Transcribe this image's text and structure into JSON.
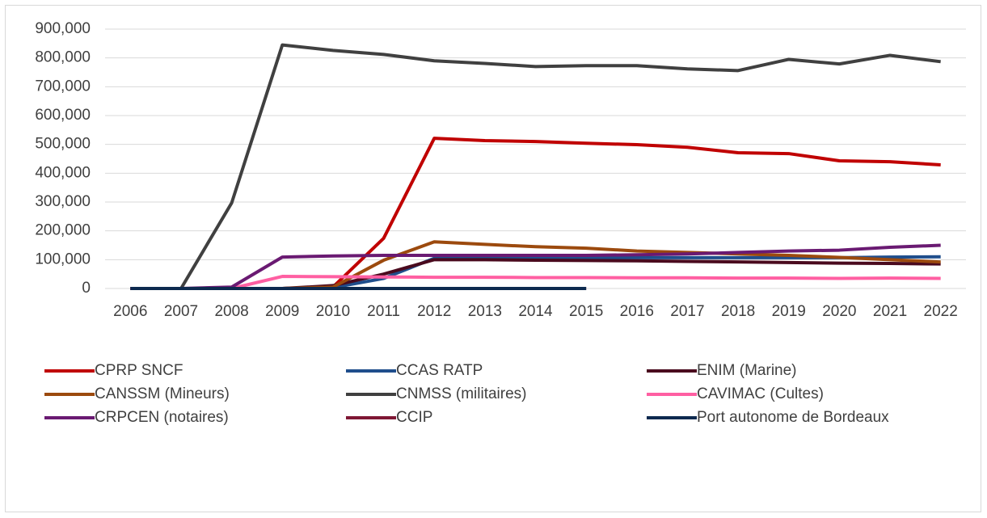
{
  "chart_data": {
    "type": "line",
    "categories": [
      "2006",
      "2007",
      "2008",
      "2009",
      "2010",
      "2011",
      "2012",
      "2013",
      "2014",
      "2015",
      "2016",
      "2017",
      "2018",
      "2019",
      "2020",
      "2021",
      "2022"
    ],
    "ylim": [
      0,
      900000
    ],
    "yticks": [
      0,
      {
        "value": 100000,
        "label": "100,000"
      },
      {
        "value": 200000,
        "label": "200,000"
      },
      {
        "value": 300000,
        "label": "300,000"
      },
      {
        "value": 400000,
        "label": "400,000"
      },
      {
        "value": 500000,
        "label": "500,000"
      },
      {
        "value": 600000,
        "label": "600,000"
      },
      {
        "value": 700000,
        "label": "700,000"
      },
      {
        "value": 800000,
        "label": "800,000"
      },
      {
        "value": 900000,
        "label": "900,000"
      }
    ],
    "grid": true,
    "legend": "bottom",
    "series": [
      {
        "name": "CPRP SNCF",
        "color": "#c00000",
        "values": [
          0,
          0,
          0,
          0,
          5000,
          174000,
          521000,
          513000,
          510000,
          504000,
          499000,
          490000,
          471000,
          468000,
          443000,
          440000,
          429000
        ]
      },
      {
        "name": "CCAS RATP",
        "color": "#1f4e8c",
        "values": [
          0,
          0,
          0,
          0,
          3000,
          35000,
          105000,
          106000,
          106000,
          106000,
          107000,
          107000,
          107000,
          107000,
          107000,
          109000,
          110000
        ]
      },
      {
        "name": "ENIM (Marine)",
        "color": "#4a0a1e",
        "values": [
          0,
          0,
          0,
          0,
          10000,
          50000,
          100000,
          100000,
          98000,
          97000,
          96000,
          94000,
          92000,
          90000,
          88000,
          87000,
          85000
        ]
      },
      {
        "name": "CANSSM (Mineurs)",
        "color": "#9c4a0e",
        "values": [
          0,
          0,
          0,
          0,
          5000,
          98000,
          162000,
          153000,
          145000,
          140000,
          130000,
          125000,
          120000,
          115000,
          108000,
          100000,
          92000
        ]
      },
      {
        "name": "CNMSS (militaires)",
        "color": "#404040",
        "values": [
          0,
          0,
          297000,
          845000,
          826000,
          812000,
          790000,
          781000,
          770000,
          773000,
          773000,
          762000,
          756000,
          795000,
          779000,
          809000,
          787000
        ]
      },
      {
        "name": "CAVIMAC (Cultes)",
        "color": "#ff5fa2",
        "values": [
          0,
          0,
          0,
          42000,
          41000,
          40000,
          39000,
          39000,
          38000,
          38000,
          37000,
          37000,
          36000,
          36000,
          35000,
          36000,
          35000
        ]
      },
      {
        "name": "CRPCEN (notaires)",
        "color": "#6a1a72",
        "values": [
          0,
          0,
          5000,
          109000,
          113000,
          115000,
          115000,
          115000,
          115000,
          115000,
          117000,
          120000,
          125000,
          130000,
          133000,
          143000,
          150000
        ]
      },
      {
        "name": "CCIP",
        "color": "#7f1734",
        "values": [
          0,
          0,
          0,
          0,
          0,
          0,
          0,
          0,
          0,
          0,
          null,
          null,
          null,
          null,
          null,
          null,
          null
        ]
      },
      {
        "name": "Port autonome de Bordeaux",
        "color": "#0d2a4f",
        "values": [
          0,
          0,
          0,
          0,
          0,
          0,
          0,
          0,
          0,
          0,
          null,
          null,
          null,
          null,
          null,
          null,
          null
        ]
      }
    ]
  }
}
